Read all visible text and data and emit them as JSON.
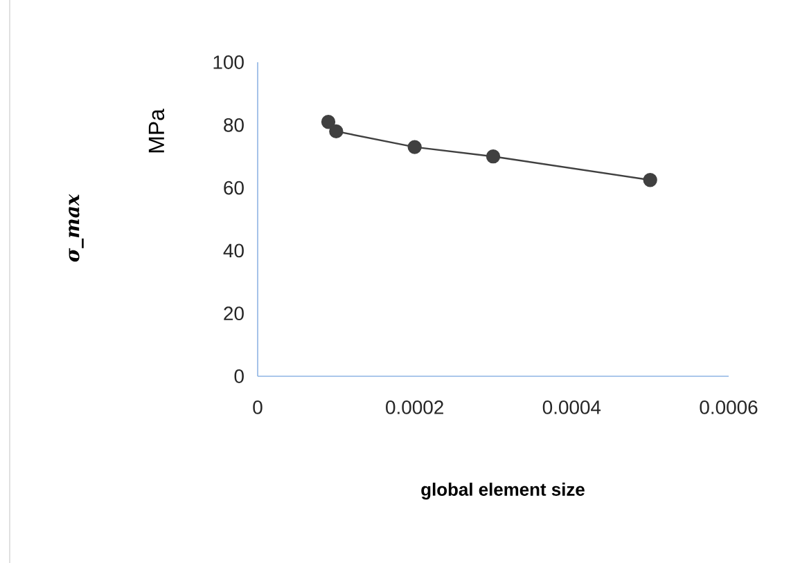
{
  "chart_data": {
    "type": "line",
    "xlabel": "global element size",
    "ylabel": "MPa",
    "annotations": [
      "σ_max"
    ],
    "x": [
      9e-05,
      0.0001,
      0.0002,
      0.0003,
      0.0005
    ],
    "series": [
      {
        "color": "#404040",
        "values": [
          81,
          78,
          73,
          70,
          62.5
        ]
      }
    ],
    "xlim": [
      0,
      0.0006
    ],
    "ylim": [
      0,
      100
    ],
    "xticks": [
      0,
      0.0002,
      0.0004,
      0.0006
    ],
    "yticks": [
      0,
      20,
      40,
      60,
      80,
      100
    ],
    "grid": false,
    "marker": "circle",
    "line_style": "solid"
  }
}
